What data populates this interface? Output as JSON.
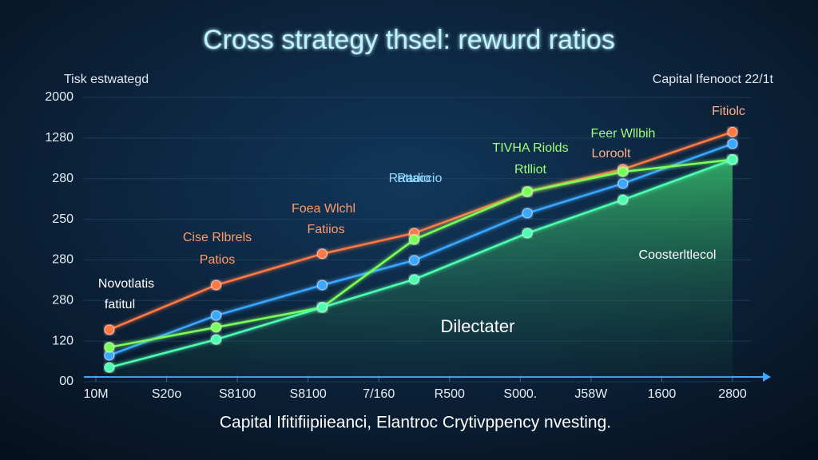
{
  "chart_data": {
    "type": "line",
    "title": "Cross strategy thsel: rewurd ratios",
    "y_axis_label": "Tisk estwategd",
    "top_right_label": "Capital Ifenooct 22/1t",
    "caption": "Capital Ifitifiipiieanci, Elantroc Crytivppency nvesting.",
    "xlim": [
      0,
      9
    ],
    "xticks": [
      {
        "value": 0,
        "label": "10M"
      },
      {
        "value": 1,
        "label": "S20o"
      },
      {
        "value": 2,
        "label": "S8100"
      },
      {
        "value": 3,
        "label": "S8100"
      },
      {
        "value": 4,
        "label": "7/160"
      },
      {
        "value": 5,
        "label": "R500"
      },
      {
        "value": 6,
        "label": "S000."
      },
      {
        "value": 7,
        "label": "J58W"
      },
      {
        "value": 8,
        "label": "1600"
      },
      {
        "value": 9,
        "label": "2800"
      }
    ],
    "ylim": [
      0,
      7.4
    ],
    "yticks": [
      {
        "value": 0,
        "label": "00"
      },
      {
        "value": 1,
        "label": "120"
      },
      {
        "value": 2,
        "label": "280"
      },
      {
        "value": 3,
        "label": "280"
      },
      {
        "value": 4,
        "label": "250"
      },
      {
        "value": 5,
        "label": "280"
      },
      {
        "value": 6,
        "label": "1280"
      },
      {
        "value": 7,
        "label": "2000"
      }
    ],
    "grid": true,
    "series": [
      {
        "name": "Fitiolc",
        "color": "#ff7a45",
        "x": [
          0.19,
          1.7,
          3.2,
          4.5,
          6.1,
          7.45,
          9
        ],
        "values": [
          1.28,
          2.38,
          3.15,
          3.66,
          4.68,
          5.23,
          6.15
        ]
      },
      {
        "name": "Rattaccio",
        "color": "#3aa8ff",
        "x": [
          0.19,
          1.7,
          3.2,
          4.5,
          6.1,
          7.45,
          9
        ],
        "values": [
          0.65,
          1.63,
          2.38,
          2.99,
          4.15,
          4.88,
          5.86
        ]
      },
      {
        "name": "Rtlliot",
        "color": "#7dff5a",
        "x": [
          0.19,
          1.7,
          3.2,
          4.5,
          6.1,
          7.45,
          9
        ],
        "values": [
          0.85,
          1.34,
          1.83,
          3.5,
          4.68,
          5.17,
          5.47
        ]
      },
      {
        "name": "Dilectater",
        "color": "#4dffb0",
        "area": true,
        "x": [
          0.19,
          1.7,
          3.2,
          4.5,
          6.1,
          7.45,
          9
        ],
        "values": [
          0.35,
          1.04,
          1.83,
          2.52,
          3.66,
          4.48,
          5.47
        ]
      }
    ],
    "annotations": [
      "Novotlatis",
      "fatitul",
      "Cise Rlbrels",
      "Patios",
      "Foea Wlchl",
      "Fatiios",
      "Radio",
      "TIVHA Riolds",
      "Feer Wllbih",
      "Loroolt",
      "Coosterltlecol"
    ]
  }
}
